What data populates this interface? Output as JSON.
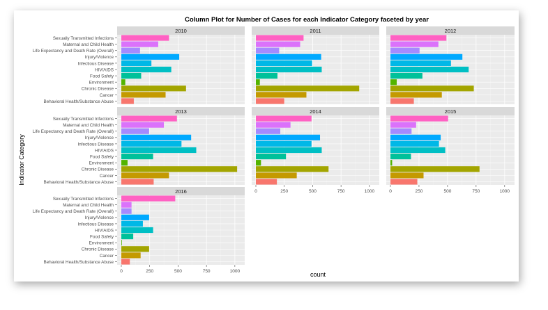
{
  "chart_data": {
    "type": "bar",
    "orientation": "horizontal",
    "title": "Column Plot for Number of Cases for each Indicator Category faceted by year",
    "xlabel": "count",
    "ylabel": "Indicator Category",
    "xlim": [
      0,
      1050
    ],
    "x_ticks": [
      "0",
      "250",
      "500",
      "750",
      "1000"
    ],
    "grid": true,
    "legend": "none",
    "categories": [
      "Sexually Transmitted Infections",
      "Maternal and Child Health",
      "Life Expectancy and Death Rate (Overall)",
      "Injury/Violence",
      "Infectious Disease",
      "HIV/AIDS",
      "Food Safety",
      "Environment",
      "Chronic Disease",
      "Cancer",
      "Behavioral Health/Substance Abuse"
    ],
    "category_colors": [
      "#FF61C3",
      "#DB72FB",
      "#A58AFF",
      "#00A9FF",
      "#00B8E7",
      "#00BFC4",
      "#00C19A",
      "#53B400",
      "#A3A500",
      "#C49A00",
      "#F8766D"
    ],
    "facets": [
      {
        "label": "2010",
        "values": [
          420,
          325,
          165,
          510,
          265,
          440,
          175,
          35,
          570,
          390,
          110
        ]
      },
      {
        "label": "2011",
        "values": [
          420,
          390,
          205,
          575,
          495,
          580,
          190,
          35,
          910,
          445,
          250
        ]
      },
      {
        "label": "2012",
        "values": [
          490,
          420,
          255,
          630,
          530,
          685,
          280,
          55,
          730,
          450,
          205
        ]
      },
      {
        "label": "2013",
        "values": [
          490,
          375,
          245,
          615,
          530,
          660,
          280,
          55,
          1020,
          420,
          285
        ]
      },
      {
        "label": "2014",
        "values": [
          490,
          305,
          215,
          565,
          490,
          580,
          265,
          45,
          640,
          360,
          185
        ]
      },
      {
        "label": "2015",
        "values": [
          505,
          225,
          185,
          440,
          425,
          480,
          180,
          15,
          780,
          290,
          235
        ]
      },
      {
        "label": "2016",
        "values": [
          475,
          90,
          90,
          245,
          190,
          280,
          105,
          5,
          245,
          170,
          75
        ]
      }
    ]
  }
}
